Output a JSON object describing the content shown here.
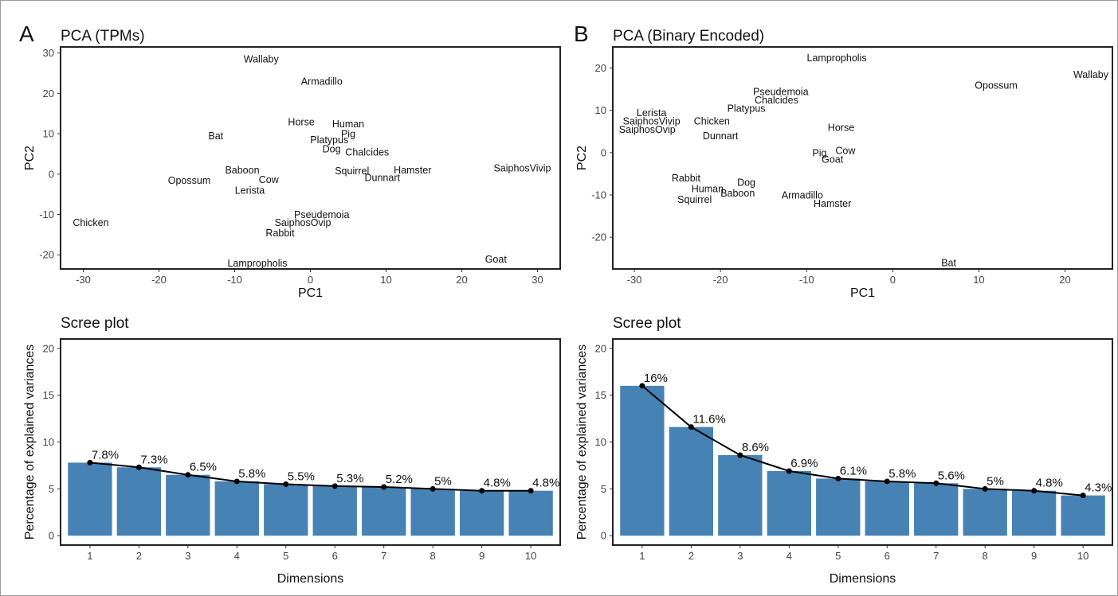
{
  "chart_data": [
    {
      "panel": "A",
      "type": "scatter",
      "title": "PCA (TPMs)",
      "xlabel": "PC1",
      "ylabel": "PC2",
      "xlim": [
        -33,
        33
      ],
      "ylim": [
        -23.5,
        31.5
      ],
      "xticks": [
        -30,
        -20,
        -10,
        0,
        10,
        20,
        30
      ],
      "yticks": [
        -20,
        -10,
        0,
        10,
        20,
        30
      ],
      "grid": false,
      "points": [
        {
          "label": "Wallaby",
          "x": -6.5,
          "y": 28.5
        },
        {
          "label": "Armadillo",
          "x": 1.5,
          "y": 23
        },
        {
          "label": "Horse",
          "x": -1.2,
          "y": 13
        },
        {
          "label": "Human",
          "x": 5,
          "y": 12.5
        },
        {
          "label": "Pig",
          "x": 5,
          "y": 10
        },
        {
          "label": "Bat",
          "x": -12.5,
          "y": 9.5
        },
        {
          "label": "Platypus",
          "x": 2.5,
          "y": 8.5
        },
        {
          "label": "Dog",
          "x": 2.8,
          "y": 6.3
        },
        {
          "label": "Chalcides",
          "x": 7.5,
          "y": 5.5
        },
        {
          "label": "SaiphosVivip",
          "x": 28,
          "y": 1.5
        },
        {
          "label": "Squirrel",
          "x": 5.5,
          "y": 0.8
        },
        {
          "label": "Hamster",
          "x": 13.5,
          "y": 1
        },
        {
          "label": "Baboon",
          "x": -9,
          "y": 1
        },
        {
          "label": "Dunnart",
          "x": 9.5,
          "y": -0.8
        },
        {
          "label": "Cow",
          "x": -5.5,
          "y": -1.3
        },
        {
          "label": "Opossum",
          "x": -16,
          "y": -1.5
        },
        {
          "label": "Lerista",
          "x": -8,
          "y": -4
        },
        {
          "label": "Pseudemoia",
          "x": 1.5,
          "y": -10
        },
        {
          "label": "Chicken",
          "x": -29,
          "y": -12
        },
        {
          "label": "SaiphosOvip",
          "x": -1,
          "y": -12
        },
        {
          "label": "Rabbit",
          "x": -4,
          "y": -14.5
        },
        {
          "label": "Goat",
          "x": 24.5,
          "y": -21
        },
        {
          "label": "Lampropholis",
          "x": -7,
          "y": -22
        }
      ]
    },
    {
      "panel": "B",
      "type": "scatter",
      "title": "PCA (Binary Encoded)",
      "xlabel": "PC1",
      "ylabel": "PC2",
      "xlim": [
        -32.5,
        25.5
      ],
      "ylim": [
        -27.5,
        25
      ],
      "xticks": [
        -30,
        -20,
        -10,
        0,
        10,
        20
      ],
      "yticks": [
        -20,
        -10,
        0,
        10,
        20
      ],
      "grid": false,
      "points": [
        {
          "label": "Lampropholis",
          "x": -6.5,
          "y": 22.5
        },
        {
          "label": "Wallaby",
          "x": 23,
          "y": 18.5
        },
        {
          "label": "Opossum",
          "x": 12,
          "y": 16
        },
        {
          "label": "Pseudemoia",
          "x": -13,
          "y": 14.5
        },
        {
          "label": "Chalcides",
          "x": -13.5,
          "y": 12.5
        },
        {
          "label": "Platypus",
          "x": -17,
          "y": 10.5
        },
        {
          "label": "Lerista",
          "x": -28,
          "y": 9.5
        },
        {
          "label": "SaiphosVivip",
          "x": -28,
          "y": 7.5
        },
        {
          "label": "Chicken",
          "x": -21,
          "y": 7.5
        },
        {
          "label": "SaiphosOvip",
          "x": -28.5,
          "y": 5.5
        },
        {
          "label": "Dunnart",
          "x": -20,
          "y": 4
        },
        {
          "label": "Horse",
          "x": -6,
          "y": 6
        },
        {
          "label": "Pig",
          "x": -8.5,
          "y": 0
        },
        {
          "label": "Cow",
          "x": -5.5,
          "y": 0.5
        },
        {
          "label": "Goat",
          "x": -7,
          "y": -1.5
        },
        {
          "label": "Rabbit",
          "x": -24,
          "y": -6
        },
        {
          "label": "Dog",
          "x": -17,
          "y": -7
        },
        {
          "label": "Human",
          "x": -21.5,
          "y": -8.5
        },
        {
          "label": "Baboon",
          "x": -18,
          "y": -9.5
        },
        {
          "label": "Armadillo",
          "x": -10.5,
          "y": -10
        },
        {
          "label": "Squirrel",
          "x": -23,
          "y": -11
        },
        {
          "label": "Hamster",
          "x": -7,
          "y": -12
        },
        {
          "label": "Bat",
          "x": 6.5,
          "y": -26
        }
      ]
    },
    {
      "panel": "A",
      "type": "bar",
      "title": "Scree plot",
      "xlabel": "Dimensions",
      "ylabel": "Percentage of explained variances",
      "ylim": [
        -1,
        21
      ],
      "yticks": [
        0,
        5,
        10,
        15,
        20
      ],
      "categories": [
        "1",
        "2",
        "3",
        "4",
        "5",
        "6",
        "7",
        "8",
        "9",
        "10"
      ],
      "values": [
        7.8,
        7.3,
        6.5,
        5.8,
        5.5,
        5.3,
        5.2,
        5.0,
        4.8,
        4.8
      ],
      "data_labels": [
        "7.8%",
        "7.3%",
        "6.5%",
        "5.8%",
        "5.5%",
        "5.3%",
        "5.2%",
        "5%",
        "4.8%",
        "4.8%"
      ],
      "bar_color": "#4682B4",
      "line_color": "#000000"
    },
    {
      "panel": "B",
      "type": "bar",
      "title": "Scree plot",
      "xlabel": "Dimensions",
      "ylabel": "Percentage of explained variances",
      "ylim": [
        -1,
        21
      ],
      "yticks": [
        0,
        5,
        10,
        15,
        20
      ],
      "categories": [
        "1",
        "2",
        "3",
        "4",
        "5",
        "6",
        "7",
        "8",
        "9",
        "10"
      ],
      "values": [
        16.0,
        11.6,
        8.6,
        6.9,
        6.1,
        5.8,
        5.6,
        5.0,
        4.8,
        4.3
      ],
      "data_labels": [
        "16%",
        "11.6%",
        "8.6%",
        "6.9%",
        "6.1%",
        "5.8%",
        "5.6%",
        "5%",
        "4.8%",
        "4.3%"
      ],
      "bar_color": "#4682B4",
      "line_color": "#000000"
    }
  ]
}
